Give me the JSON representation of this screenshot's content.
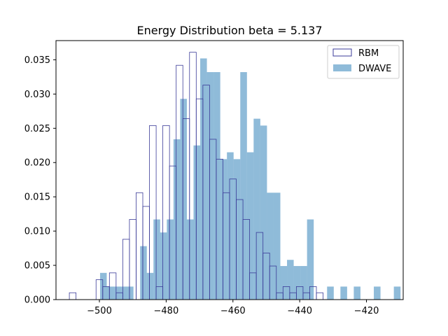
{
  "chart_data": {
    "type": "bar",
    "title": "Energy Distribution beta = 5.137",
    "xlabel": "",
    "ylabel": "",
    "xlim": [
      -513,
      -409
    ],
    "ylim": [
      0,
      0.0378
    ],
    "xticks": [
      -500,
      -480,
      -460,
      -440,
      -420
    ],
    "xtick_labels": [
      "−500",
      "−480",
      "−460",
      "−440",
      "−420"
    ],
    "yticks": [
      0.0,
      0.005,
      0.01,
      0.015,
      0.02,
      0.025,
      0.03,
      0.035
    ],
    "ytick_labels": [
      "0.000",
      "0.005",
      "0.010",
      "0.015",
      "0.020",
      "0.025",
      "0.030",
      "0.035"
    ],
    "grid": false,
    "legend_position": "top-right",
    "series": [
      {
        "name": "RBM",
        "style": "step-outline",
        "color": "#3b3b98",
        "bin_left": -509.0,
        "bin_width": 2.0,
        "values": [
          0.001,
          0,
          0,
          0,
          0.0029,
          0.0019,
          0.0039,
          0.001,
          0.0088,
          0.0117,
          0.0156,
          0.0136,
          0.0254,
          0.0019,
          0.0254,
          0.0195,
          0.0342,
          0.0264,
          0.0361,
          0.0293,
          0.0313,
          0.0234,
          0.0205,
          0.0156,
          0.0176,
          0.0146,
          0.0117,
          0.0039,
          0.0098,
          0.0068,
          0.0049,
          0.001,
          0.0019,
          0.001,
          0.0019,
          0.001,
          0.0019,
          0.001
        ]
      },
      {
        "name": "DWAVE",
        "style": "filled",
        "color": "#1f77b4",
        "alpha": 0.5,
        "bin_left": -499.8,
        "bin_width": 2.0,
        "values": [
          0.0039,
          0.0019,
          0.0019,
          0.0019,
          0.0019,
          0,
          0.0078,
          0.0039,
          0.0117,
          0.0098,
          0.0117,
          0.0234,
          0.0293,
          0.0117,
          0.0225,
          0.0352,
          0.0332,
          0.0332,
          0.0205,
          0.0215,
          0.0205,
          0.0332,
          0.0215,
          0.0264,
          0.0254,
          0.0156,
          0.0156,
          0.0049,
          0.0058,
          0.0049,
          0.0049,
          0.0117,
          0,
          0,
          0.0019,
          0,
          0.0019,
          0,
          0.0019,
          0,
          0,
          0.0019,
          0,
          0,
          0.0019
        ]
      }
    ]
  }
}
